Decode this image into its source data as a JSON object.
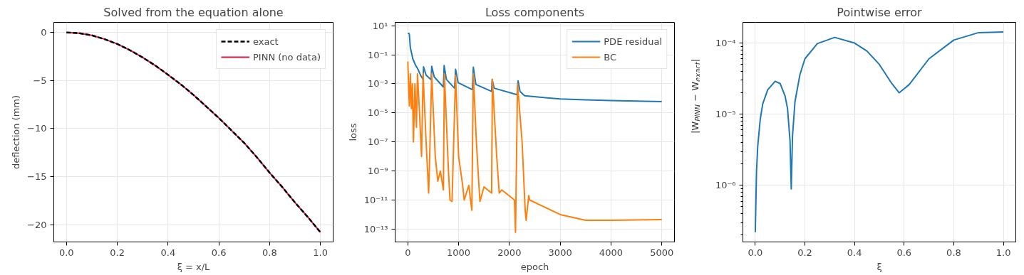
{
  "chart_data": [
    {
      "type": "line",
      "title": "Solved from the equation alone",
      "xlabel": "ξ = x/L",
      "ylabel": "deflection (mm)",
      "x": [
        0,
        0.05,
        0.1,
        0.15,
        0.2,
        0.25,
        0.3,
        0.35,
        0.4,
        0.45,
        0.5,
        0.55,
        0.6,
        0.65,
        0.7,
        0.75,
        0.8,
        0.85,
        0.9,
        0.95,
        1.0
      ],
      "series": [
        {
          "name": "exact",
          "color": "#000000",
          "line_style": "dashed",
          "values": [
            0,
            -0.08,
            -0.3,
            -0.7,
            -1.2,
            -1.85,
            -2.6,
            -3.45,
            -4.4,
            -5.4,
            -6.5,
            -7.7,
            -8.9,
            -10.2,
            -11.5,
            -13.0,
            -14.6,
            -16.1,
            -17.7,
            -19.2,
            -20.8
          ]
        },
        {
          "name": "PINN (no data)",
          "color": "#dc143c",
          "line_style": "solid",
          "values": [
            0,
            -0.08,
            -0.3,
            -0.7,
            -1.2,
            -1.85,
            -2.6,
            -3.45,
            -4.4,
            -5.4,
            -6.5,
            -7.7,
            -8.9,
            -10.2,
            -11.5,
            -13.0,
            -14.6,
            -16.1,
            -17.7,
            -19.2,
            -20.8
          ]
        }
      ],
      "xlim": [
        -0.05,
        1.05
      ],
      "ylim": [
        -21.8,
        1.05
      ],
      "xticks": [
        {
          "value": 0,
          "label": "0.0"
        },
        {
          "value": 0.2,
          "label": "0.2"
        },
        {
          "value": 0.4,
          "label": "0.4"
        },
        {
          "value": 0.6,
          "label": "0.6"
        },
        {
          "value": 0.8,
          "label": "0.8"
        },
        {
          "value": 1.0,
          "label": "1.0"
        }
      ],
      "yticks": [
        0,
        {
          "value": -5,
          "label": "−5"
        },
        {
          "value": -10,
          "label": "−10"
        },
        {
          "value": -15,
          "label": "−15"
        },
        {
          "value": -20,
          "label": "−20"
        }
      ],
      "grid": true,
      "legend": "top right"
    },
    {
      "type": "line",
      "title": "Loss components",
      "xlabel": "epoch",
      "ylabel": "loss",
      "log": "y",
      "series": [
        {
          "name": "PDE residual",
          "color": "#1f77b4",
          "x": [
            0,
            20,
            30,
            50,
            100,
            150,
            200,
            250,
            300,
            310,
            360,
            460,
            470,
            520,
            700,
            715,
            760,
            920,
            940,
            990,
            1270,
            1290,
            1340,
            1650,
            1660,
            1700,
            2150,
            2170,
            2210,
            2300,
            2600,
            3000,
            3500,
            4000,
            4500,
            5000
          ],
          "values": [
            3,
            3,
            2.5,
            0.3,
            0.05,
            0.02,
            0.01,
            0.004,
            0.002,
            0.015,
            0.004,
            0.0019,
            0.016,
            0.003,
            0.0006,
            0.018,
            0.002,
            0.0005,
            0.01,
            0.0012,
            0.0004,
            0.014,
            0.0009,
            0.0003,
            0.002,
            0.0005,
            0.00018,
            0.0016,
            0.0003,
            0.00015,
            0.00012,
            9e-05,
            8e-05,
            7e-05,
            6.5e-05,
            6e-05
          ]
        },
        {
          "name": "BC",
          "color": "#ff7f0e",
          "x": [
            0,
            10,
            30,
            50,
            70,
            90,
            110,
            140,
            170,
            190,
            230,
            270,
            300,
            360,
            410,
            430,
            470,
            540,
            590,
            640,
            700,
            720,
            800,
            830,
            870,
            940,
            1000,
            1080,
            1110,
            1200,
            1260,
            1290,
            1350,
            1400,
            1420,
            1500,
            1650,
            1665,
            1750,
            1800,
            1850,
            2100,
            2120,
            2160,
            2250,
            2310,
            2330,
            2380,
            2400,
            3000,
            3500,
            4000,
            5000
          ],
          "values": [
            0.035,
            0.0028,
            3e-05,
            0.005,
            2e-05,
            0.001,
            1e-07,
            0.001,
            1e-06,
            0.005,
            1e-05,
            1e-08,
            0.005,
            1e-07,
            3e-11,
            1e-08,
            0.005,
            1e-08,
            2e-10,
            1e-09,
            5e-11,
            0.005,
            1e-09,
            1e-11,
            8e-12,
            0.004,
            1e-08,
            1e-10,
            1e-11,
            1e-10,
            2e-12,
            0.005,
            1e-07,
            1e-10,
            8e-12,
            8e-11,
            3e-11,
            0.002,
            1e-08,
            3e-11,
            5e-11,
            1e-11,
            6e-14,
            0.001,
            1e-07,
            2e-12,
            4e-13,
            2e-11,
            1e-11,
            1e-12,
            4e-13,
            4e-13,
            4.5e-13
          ]
        }
      ],
      "xlim": [
        -250,
        5250
      ],
      "ylim": [
        1.3e-14,
        17
      ],
      "xticks": [
        0,
        1000,
        2000,
        3000,
        4000,
        5000
      ],
      "yticks": [
        {
          "value": 10,
          "label": "10¹"
        },
        {
          "value": 0.1,
          "label": "10⁻¹"
        },
        {
          "value": 0.001,
          "label": "10⁻³"
        },
        {
          "value": 1e-05,
          "label": "10⁻⁵"
        },
        {
          "value": 1e-07,
          "label": "10⁻⁷"
        },
        {
          "value": 1e-09,
          "label": "10⁻⁹"
        },
        {
          "value": 1e-11,
          "label": "10⁻¹¹"
        },
        {
          "value": 1e-13,
          "label": "10⁻¹³"
        }
      ],
      "grid": true,
      "legend": "top right"
    },
    {
      "type": "line",
      "title": "Pointwise error",
      "xlabel": "ξ",
      "ylabel": "|W$_{PINN}$ − W$_{exact}$|",
      "log": "y",
      "x": [
        0,
        0.005,
        0.01,
        0.02,
        0.03,
        0.05,
        0.08,
        0.1,
        0.12,
        0.13,
        0.14,
        0.145,
        0.15,
        0.16,
        0.18,
        0.2,
        0.25,
        0.32,
        0.4,
        0.45,
        0.5,
        0.55,
        0.58,
        0.62,
        0.7,
        0.8,
        0.9,
        1.0
      ],
      "series": [
        {
          "color": "#1f77b4",
          "values": [
            2.2e-07,
            1.6e-06,
            3.6e-06,
            8.5e-06,
            1.4e-05,
            2.2e-05,
            2.9e-05,
            2.7e-05,
            1.8e-05,
            1.2e-05,
            4.2e-06,
            8.9e-07,
            4.9e-06,
            1.5e-05,
            3.6e-05,
            6e-05,
            9.8e-05,
            0.00012,
            0.0001,
            7.7e-05,
            5e-05,
            2.7e-05,
            2e-05,
            2.6e-05,
            6e-05,
            0.00011,
            0.00014,
            0.000143
          ]
        }
      ],
      "xlim": [
        -0.05,
        1.05
      ],
      "ylim": [
        1.6e-07,
        0.000195
      ],
      "xticks": [
        {
          "value": 0,
          "label": "0.0"
        },
        {
          "value": 0.2,
          "label": "0.2"
        },
        {
          "value": 0.4,
          "label": "0.4"
        },
        {
          "value": 0.6,
          "label": "0.6"
        },
        {
          "value": 0.8,
          "label": "0.8"
        },
        {
          "value": 1.0,
          "label": "1.0"
        }
      ],
      "yticks": [
        {
          "value": 2e-07,
          "label": null
        },
        {
          "value": 3e-07,
          "label": null
        },
        {
          "value": 4e-07,
          "label": null
        },
        {
          "value": 5e-07,
          "label": null
        },
        {
          "value": 6e-07,
          "label": null
        },
        {
          "value": 7e-07,
          "label": null
        },
        {
          "value": 8e-07,
          "label": null
        },
        {
          "value": 9e-07,
          "label": null
        },
        {
          "value": 1e-06,
          "label": "10⁻⁶"
        },
        {
          "value": 2e-06,
          "label": null
        },
        {
          "value": 3e-06,
          "label": null
        },
        {
          "value": 4e-06,
          "label": null
        },
        {
          "value": 5e-06,
          "label": null
        },
        {
          "value": 6e-06,
          "label": null
        },
        {
          "value": 7e-06,
          "label": null
        },
        {
          "value": 8e-06,
          "label": null
        },
        {
          "value": 9e-06,
          "label": null
        },
        {
          "value": 1e-05,
          "label": "10⁻⁵"
        },
        {
          "value": 2e-05,
          "label": null
        },
        {
          "value": 3e-05,
          "label": null
        },
        {
          "value": 4e-05,
          "label": null
        },
        {
          "value": 5e-05,
          "label": null
        },
        {
          "value": 6e-05,
          "label": null
        },
        {
          "value": 7e-05,
          "label": null
        },
        {
          "value": 8e-05,
          "label": null
        },
        {
          "value": 9e-05,
          "label": null
        },
        {
          "value": 0.0001,
          "label": "10⁻⁴"
        }
      ],
      "grid": true
    }
  ]
}
